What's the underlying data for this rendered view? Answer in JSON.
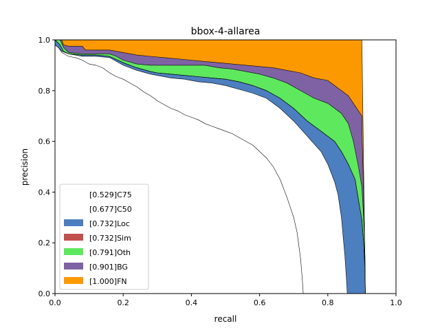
{
  "chart_data": {
    "type": "area",
    "title": "bbox-4-allarea",
    "xlabel": "recall",
    "ylabel": "precision",
    "xlim": [
      0,
      1
    ],
    "ylim": [
      0,
      1
    ],
    "xticks": [
      "0.0",
      "0.2",
      "0.4",
      "0.6",
      "0.8",
      "1.0"
    ],
    "yticks": [
      "0.0",
      "0.2",
      "0.4",
      "0.6",
      "0.8",
      "1.0"
    ],
    "grid": false,
    "legend_position": "lower-left",
    "legend": [
      {
        "label": "[0.529]C75",
        "color": "#ffffff"
      },
      {
        "label": "[0.677]C50",
        "color": "#ffffff"
      },
      {
        "label": "[0.732]Loc",
        "color": "#4c7fbf"
      },
      {
        "label": "[0.732]Sim",
        "color": "#c0504d"
      },
      {
        "label": "[0.791]Oth",
        "color": "#5ee85e"
      },
      {
        "label": "[0.901]BG",
        "color": "#7f62a4"
      },
      {
        "label": "[1.000]FN",
        "color": "#fd9900"
      }
    ],
    "series": [
      {
        "name": "[0.529]C75",
        "color": "#ffffff",
        "points": [
          [
            0,
            0.98
          ],
          [
            0.01,
            0.97
          ],
          [
            0.02,
            0.95
          ],
          [
            0.04,
            0.935
          ],
          [
            0.06,
            0.93
          ],
          [
            0.08,
            0.92
          ],
          [
            0.1,
            0.905
          ],
          [
            0.12,
            0.9
          ],
          [
            0.14,
            0.89
          ],
          [
            0.16,
            0.87
          ],
          [
            0.18,
            0.855
          ],
          [
            0.2,
            0.845
          ],
          [
            0.22,
            0.83
          ],
          [
            0.24,
            0.815
          ],
          [
            0.26,
            0.795
          ],
          [
            0.28,
            0.78
          ],
          [
            0.3,
            0.76
          ],
          [
            0.32,
            0.745
          ],
          [
            0.34,
            0.73
          ],
          [
            0.36,
            0.72
          ],
          [
            0.38,
            0.705
          ],
          [
            0.4,
            0.695
          ],
          [
            0.42,
            0.685
          ],
          [
            0.44,
            0.67
          ],
          [
            0.46,
            0.66
          ],
          [
            0.48,
            0.65
          ],
          [
            0.5,
            0.64
          ],
          [
            0.52,
            0.63
          ],
          [
            0.54,
            0.615
          ],
          [
            0.56,
            0.6
          ],
          [
            0.58,
            0.585
          ],
          [
            0.6,
            0.56
          ],
          [
            0.62,
            0.535
          ],
          [
            0.64,
            0.5
          ],
          [
            0.66,
            0.45
          ],
          [
            0.68,
            0.38
          ],
          [
            0.7,
            0.3
          ],
          [
            0.71,
            0.24
          ],
          [
            0.72,
            0.14
          ],
          [
            0.725,
            0.06
          ],
          [
            0.728,
            0.0
          ]
        ]
      },
      {
        "name": "[0.677]C50",
        "color": "#ffffff",
        "points": [
          [
            0,
            0.98
          ],
          [
            0.01,
            0.97
          ],
          [
            0.02,
            0.955
          ],
          [
            0.04,
            0.945
          ],
          [
            0.08,
            0.935
          ],
          [
            0.12,
            0.935
          ],
          [
            0.16,
            0.93
          ],
          [
            0.2,
            0.9
          ],
          [
            0.24,
            0.88
          ],
          [
            0.28,
            0.865
          ],
          [
            0.3,
            0.86
          ],
          [
            0.34,
            0.85
          ],
          [
            0.38,
            0.845
          ],
          [
            0.42,
            0.835
          ],
          [
            0.46,
            0.83
          ],
          [
            0.5,
            0.82
          ],
          [
            0.54,
            0.805
          ],
          [
            0.58,
            0.79
          ],
          [
            0.62,
            0.77
          ],
          [
            0.66,
            0.73
          ],
          [
            0.7,
            0.68
          ],
          [
            0.74,
            0.62
          ],
          [
            0.78,
            0.56
          ],
          [
            0.8,
            0.51
          ],
          [
            0.82,
            0.44
          ],
          [
            0.83,
            0.39
          ],
          [
            0.84,
            0.3
          ],
          [
            0.85,
            0.15
          ],
          [
            0.855,
            0.05
          ],
          [
            0.857,
            0.0
          ]
        ]
      },
      {
        "name": "[0.732]Loc",
        "color": "#4c7fbf",
        "points": [
          [
            0,
            1.0
          ],
          [
            0.015,
            0.98
          ],
          [
            0.025,
            0.955
          ],
          [
            0.04,
            0.945
          ],
          [
            0.08,
            0.94
          ],
          [
            0.12,
            0.94
          ],
          [
            0.16,
            0.935
          ],
          [
            0.2,
            0.91
          ],
          [
            0.24,
            0.89
          ],
          [
            0.28,
            0.875
          ],
          [
            0.3,
            0.87
          ],
          [
            0.34,
            0.865
          ],
          [
            0.38,
            0.86
          ],
          [
            0.42,
            0.855
          ],
          [
            0.46,
            0.85
          ],
          [
            0.5,
            0.845
          ],
          [
            0.54,
            0.835
          ],
          [
            0.58,
            0.82
          ],
          [
            0.62,
            0.8
          ],
          [
            0.66,
            0.77
          ],
          [
            0.7,
            0.73
          ],
          [
            0.74,
            0.68
          ],
          [
            0.78,
            0.64
          ],
          [
            0.8,
            0.62
          ],
          [
            0.82,
            0.6
          ],
          [
            0.84,
            0.56
          ],
          [
            0.86,
            0.51
          ],
          [
            0.88,
            0.45
          ],
          [
            0.89,
            0.37
          ],
          [
            0.9,
            0.29
          ],
          [
            0.905,
            0.2
          ],
          [
            0.909,
            0.1
          ],
          [
            0.91,
            0.0
          ]
        ]
      },
      {
        "name": "[0.732]Sim",
        "color": "#c0504d",
        "points": [
          [
            0,
            1.0
          ],
          [
            0.015,
            0.98
          ],
          [
            0.025,
            0.955
          ],
          [
            0.04,
            0.945
          ],
          [
            0.08,
            0.94
          ],
          [
            0.12,
            0.94
          ],
          [
            0.16,
            0.935
          ],
          [
            0.2,
            0.91
          ],
          [
            0.24,
            0.89
          ],
          [
            0.28,
            0.875
          ],
          [
            0.3,
            0.87
          ],
          [
            0.34,
            0.865
          ],
          [
            0.38,
            0.86
          ],
          [
            0.42,
            0.855
          ],
          [
            0.46,
            0.85
          ],
          [
            0.5,
            0.845
          ],
          [
            0.54,
            0.835
          ],
          [
            0.58,
            0.82
          ],
          [
            0.62,
            0.8
          ],
          [
            0.66,
            0.77
          ],
          [
            0.7,
            0.73
          ],
          [
            0.74,
            0.68
          ],
          [
            0.78,
            0.64
          ],
          [
            0.8,
            0.62
          ],
          [
            0.82,
            0.6
          ],
          [
            0.84,
            0.56
          ],
          [
            0.86,
            0.51
          ],
          [
            0.88,
            0.45
          ],
          [
            0.89,
            0.37
          ],
          [
            0.9,
            0.29
          ],
          [
            0.905,
            0.2
          ],
          [
            0.909,
            0.1
          ],
          [
            0.91,
            0.0
          ]
        ]
      },
      {
        "name": "[0.791]Oth",
        "color": "#5ee85e",
        "points": [
          [
            0,
            1.0
          ],
          [
            0.015,
            1.0
          ],
          [
            0.025,
            0.97
          ],
          [
            0.04,
            0.95
          ],
          [
            0.08,
            0.945
          ],
          [
            0.12,
            0.945
          ],
          [
            0.16,
            0.945
          ],
          [
            0.18,
            0.935
          ],
          [
            0.2,
            0.92
          ],
          [
            0.24,
            0.905
          ],
          [
            0.28,
            0.9
          ],
          [
            0.32,
            0.9
          ],
          [
            0.36,
            0.9
          ],
          [
            0.4,
            0.9
          ],
          [
            0.44,
            0.9
          ],
          [
            0.48,
            0.89
          ],
          [
            0.52,
            0.885
          ],
          [
            0.56,
            0.875
          ],
          [
            0.6,
            0.865
          ],
          [
            0.64,
            0.85
          ],
          [
            0.68,
            0.83
          ],
          [
            0.72,
            0.8
          ],
          [
            0.76,
            0.77
          ],
          [
            0.8,
            0.75
          ],
          [
            0.82,
            0.73
          ],
          [
            0.84,
            0.71
          ],
          [
            0.86,
            0.67
          ],
          [
            0.875,
            0.6
          ],
          [
            0.89,
            0.5
          ],
          [
            0.9,
            0.42
          ],
          [
            0.905,
            0.3
          ],
          [
            0.909,
            0.15
          ],
          [
            0.91,
            0.0
          ]
        ]
      },
      {
        "name": "[0.901]BG",
        "color": "#7f62a4",
        "points": [
          [
            0,
            1.0
          ],
          [
            0.02,
            1.0
          ],
          [
            0.025,
            0.98
          ],
          [
            0.04,
            0.975
          ],
          [
            0.08,
            0.975
          ],
          [
            0.09,
            0.96
          ],
          [
            0.1,
            0.96
          ],
          [
            0.16,
            0.96
          ],
          [
            0.2,
            0.95
          ],
          [
            0.24,
            0.94
          ],
          [
            0.28,
            0.935
          ],
          [
            0.32,
            0.93
          ],
          [
            0.36,
            0.925
          ],
          [
            0.4,
            0.92
          ],
          [
            0.44,
            0.915
          ],
          [
            0.48,
            0.91
          ],
          [
            0.52,
            0.905
          ],
          [
            0.56,
            0.9
          ],
          [
            0.6,
            0.895
          ],
          [
            0.64,
            0.89
          ],
          [
            0.68,
            0.88
          ],
          [
            0.72,
            0.87
          ],
          [
            0.76,
            0.85
          ],
          [
            0.8,
            0.84
          ],
          [
            0.82,
            0.82
          ],
          [
            0.84,
            0.8
          ],
          [
            0.86,
            0.78
          ],
          [
            0.88,
            0.74
          ],
          [
            0.89,
            0.72
          ],
          [
            0.9,
            0.7
          ],
          [
            0.901,
            0.6
          ],
          [
            0.905,
            0.4
          ],
          [
            0.908,
            0.2
          ],
          [
            0.91,
            0.0
          ]
        ]
      },
      {
        "name": "[1.000]FN",
        "color": "#fd9900",
        "points": [
          [
            0,
            1.0
          ],
          [
            0.895,
            1.0
          ],
          [
            0.9,
            1.0
          ],
          [
            0.905,
            0.5
          ],
          [
            0.91,
            0.0
          ],
          [
            1.0,
            0.0
          ]
        ]
      }
    ]
  }
}
